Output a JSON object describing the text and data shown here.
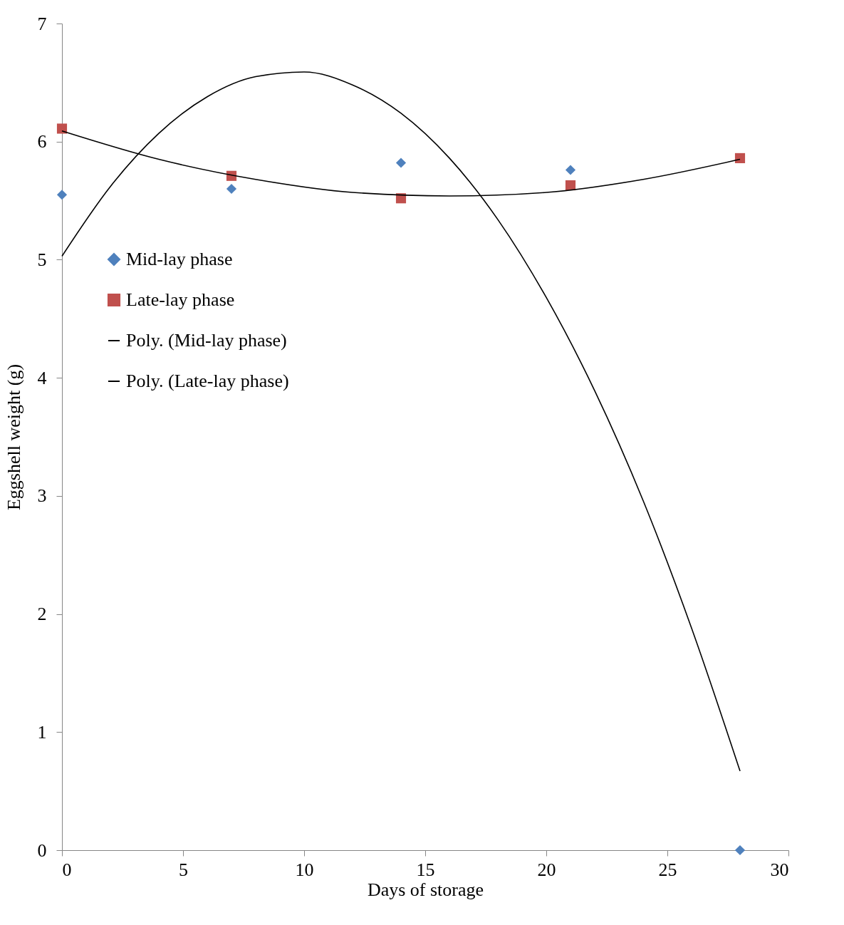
{
  "chart_data": {
    "type": "scatter",
    "xlabel": "Days of storage",
    "ylabel": "Eggshell weight (g)",
    "xlim": [
      0,
      30
    ],
    "xticks": [
      0,
      5,
      10,
      15,
      20,
      25,
      30
    ],
    "ylim": [
      0,
      7
    ],
    "yticks": [
      0,
      1,
      2,
      3,
      4,
      5,
      6,
      7
    ],
    "grid": false,
    "legend": "top left",
    "series": [
      {
        "name": "Mid-lay phase",
        "marker": "diamond",
        "color": "#4f81bd",
        "x": [
          0,
          7,
          14,
          21,
          28
        ],
        "values": [
          5.55,
          5.6,
          5.82,
          5.76,
          0
        ]
      },
      {
        "name": "Late-lay phase",
        "marker": "square",
        "color": "#c0504d",
        "x": [
          0,
          7,
          14,
          21,
          28
        ],
        "values": [
          6.11,
          5.71,
          5.52,
          5.63,
          5.86
        ]
      },
      {
        "name": "Poly. (Mid-lay phase)",
        "type": "line",
        "marker": "none",
        "line_style": "solid",
        "color": "#000000",
        "x": [
          0,
          2,
          4,
          6,
          8,
          10,
          12,
          14,
          16,
          18,
          20,
          22,
          24,
          26,
          28
        ],
        "values": [
          5.03,
          5.62,
          6.07,
          6.38,
          6.55,
          6.59,
          6.48,
          6.24,
          5.86,
          5.34,
          4.68,
          3.89,
          2.96,
          1.88,
          0.67
        ]
      },
      {
        "name": "Poly. (Late-lay phase)",
        "type": "line",
        "marker": "none",
        "line_style": "solid",
        "color": "#000000",
        "x": [
          0,
          4,
          8,
          12,
          16,
          20,
          24,
          28
        ],
        "values": [
          6.09,
          5.85,
          5.68,
          5.57,
          5.54,
          5.57,
          5.68,
          5.85
        ]
      }
    ]
  }
}
